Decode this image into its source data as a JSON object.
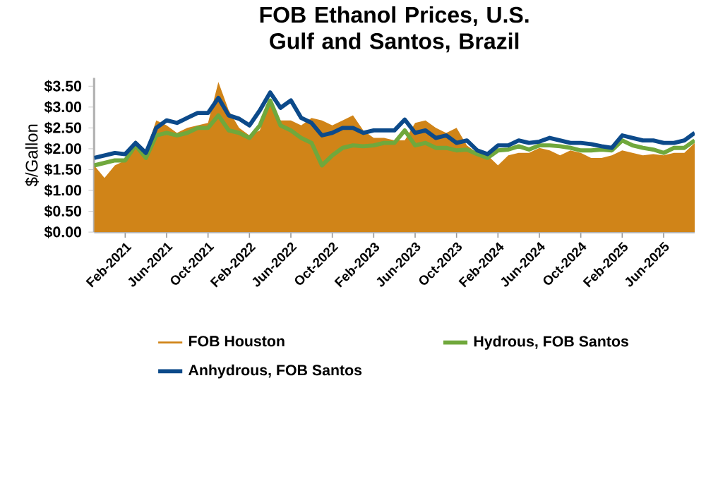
{
  "chart_data": {
    "type": "line",
    "title": "FOB Ethanol Prices, U.S. Gulf and Santos, Brazil",
    "ylabel": "$/Gallon",
    "x": [
      "2020-11",
      "2020-12",
      "2021-01",
      "2021-02",
      "2021-03",
      "2021-04",
      "2021-05",
      "2021-06",
      "2021-07",
      "2021-08",
      "2021-09",
      "2021-10",
      "2021-11",
      "2021-12",
      "2022-01",
      "2022-02",
      "2022-03",
      "2022-04",
      "2022-05",
      "2022-06",
      "2022-07",
      "2022-08",
      "2022-09",
      "2022-10",
      "2022-11",
      "2022-12",
      "2023-01",
      "2023-02",
      "2023-03",
      "2023-04",
      "2023-05",
      "2023-06",
      "2023-07",
      "2023-08",
      "2023-09",
      "2023-10",
      "2023-11",
      "2023-12",
      "2024-01",
      "2024-02",
      "2024-03",
      "2024-04",
      "2024-05",
      "2024-06",
      "2024-07",
      "2024-08",
      "2024-09",
      "2024-10",
      "2024-11",
      "2024-12",
      "2025-01",
      "2025-02",
      "2025-03",
      "2025-04",
      "2025-05",
      "2025-06",
      "2025-07",
      "2025-08",
      "2025-09"
    ],
    "series": [
      {
        "name": "FOB Houston",
        "type": "area",
        "color": "#d08418",
        "values": [
          1.6,
          1.3,
          1.6,
          1.72,
          2.2,
          1.96,
          2.68,
          2.56,
          2.38,
          2.5,
          2.56,
          2.62,
          3.6,
          2.92,
          2.5,
          2.32,
          2.44,
          3.16,
          2.68,
          2.68,
          2.56,
          2.74,
          2.68,
          2.56,
          2.68,
          2.8,
          2.44,
          2.26,
          2.26,
          2.2,
          2.2,
          2.62,
          2.68,
          2.5,
          2.38,
          2.5,
          2.08,
          1.9,
          1.84,
          1.6,
          1.84,
          1.9,
          1.9,
          2.02,
          1.96,
          1.84,
          1.96,
          1.9,
          1.78,
          1.78,
          1.84,
          1.96,
          1.9,
          1.84,
          1.87,
          1.84,
          1.9,
          1.9,
          2.14
        ]
      },
      {
        "name": "Hydrous, FOB Santos",
        "color": "#70a83c",
        "values": [
          1.6,
          1.66,
          1.72,
          1.72,
          2.08,
          1.78,
          2.32,
          2.38,
          2.32,
          2.38,
          2.5,
          2.5,
          2.8,
          2.44,
          2.38,
          2.26,
          2.56,
          3.16,
          2.56,
          2.44,
          2.26,
          2.14,
          1.6,
          1.84,
          2.02,
          2.08,
          2.06,
          2.08,
          2.14,
          2.14,
          2.44,
          2.08,
          2.14,
          2.02,
          2.02,
          1.96,
          1.98,
          1.87,
          1.78,
          1.96,
          1.98,
          2.06,
          1.98,
          2.08,
          2.08,
          2.06,
          2.02,
          1.96,
          1.96,
          1.98,
          1.96,
          2.2,
          2.08,
          2.02,
          1.98,
          1.9,
          2.02,
          2.02,
          2.2
        ]
      },
      {
        "name": "Anhydrous, FOB Santos",
        "color": "#0c4a8a",
        "values": [
          1.78,
          1.84,
          1.9,
          1.87,
          2.14,
          1.9,
          2.5,
          2.68,
          2.62,
          2.74,
          2.86,
          2.86,
          3.22,
          2.8,
          2.72,
          2.56,
          2.92,
          3.35,
          2.98,
          3.16,
          2.74,
          2.62,
          2.32,
          2.38,
          2.5,
          2.5,
          2.38,
          2.44,
          2.44,
          2.44,
          2.7,
          2.38,
          2.44,
          2.26,
          2.32,
          2.14,
          2.2,
          1.96,
          1.87,
          2.08,
          2.08,
          2.2,
          2.14,
          2.17,
          2.26,
          2.2,
          2.14,
          2.14,
          2.11,
          2.06,
          2.02,
          2.32,
          2.26,
          2.2,
          2.2,
          2.14,
          2.14,
          2.2,
          2.38
        ]
      }
    ],
    "xlim": [
      "2020-11",
      "2025-09"
    ],
    "xticks": [
      {
        "value": "2021-02",
        "label": "Feb-2021"
      },
      {
        "value": "2021-06",
        "label": "Jun-2021"
      },
      {
        "value": "2021-10",
        "label": "Oct-2021"
      },
      {
        "value": "2022-02",
        "label": "Feb-2022"
      },
      {
        "value": "2022-06",
        "label": "Jun-2022"
      },
      {
        "value": "2022-10",
        "label": "Oct-2022"
      },
      {
        "value": "2023-02",
        "label": "Feb-2023"
      },
      {
        "value": "2023-06",
        "label": "Jun-2023"
      },
      {
        "value": "2023-10",
        "label": "Oct-2023"
      },
      {
        "value": "2024-02",
        "label": "Feb-2024"
      },
      {
        "value": "2024-06",
        "label": "Jun-2024"
      },
      {
        "value": "2024-10",
        "label": "Oct-2024"
      },
      {
        "value": "2025-02",
        "label": "Feb-2025"
      },
      {
        "value": "2025-06",
        "label": "Jun-2025"
      }
    ],
    "ylim": [
      0,
      3.7
    ],
    "yticks": [
      {
        "value": 0,
        "label": "$0.00"
      },
      {
        "value": 0.5,
        "label": "$0.50"
      },
      {
        "value": 1,
        "label": "$1.00"
      },
      {
        "value": 1.5,
        "label": "$1.50"
      },
      {
        "value": 2,
        "label": "$2.00"
      },
      {
        "value": 2.5,
        "label": "$2.50"
      },
      {
        "value": 3,
        "label": "$3.00"
      },
      {
        "value": 3.5,
        "label": "$3.50"
      }
    ],
    "legend": "bottom"
  }
}
